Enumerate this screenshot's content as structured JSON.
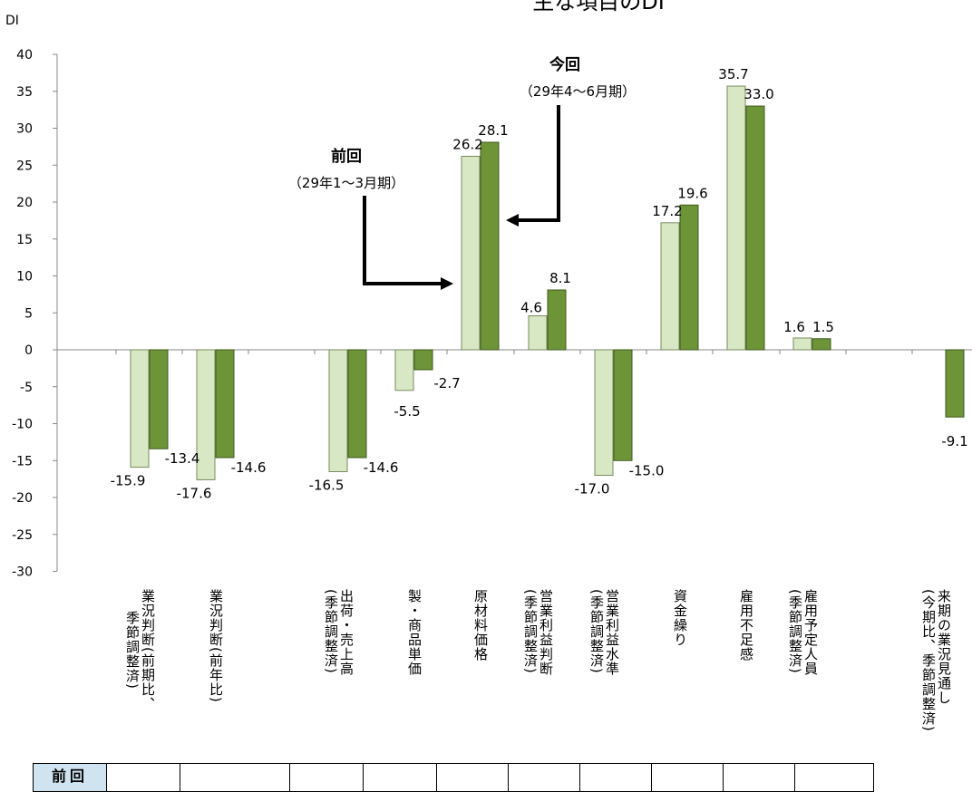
{
  "chart_data": {
    "type": "bar",
    "title": "主な項目のDI",
    "ylabel": "DI",
    "ylim": [
      -30,
      40
    ],
    "yticks": [
      40,
      35,
      30,
      25,
      20,
      15,
      10,
      5,
      0,
      -5,
      -10,
      -15,
      -20,
      -25,
      -30
    ],
    "categories": [
      "業況判断(前期比、季節調整済)",
      "業況判断(前年比)",
      "出荷・売上高(季節調整済)",
      "製・商品単価",
      "原材料価格",
      "営業利益判断(季節調整済)",
      "営業利益水準(季節調整済)",
      "資金繰り",
      "雇用不足感",
      "雇用予定人員(季節調整済)",
      "来期の業況見通し(今期比、季節調整済)"
    ],
    "series": [
      {
        "name": "前回",
        "color": "#d8e8c4",
        "values": [
          -15.9,
          -17.6,
          -16.5,
          -5.5,
          26.2,
          4.6,
          -17.0,
          17.2,
          35.7,
          1.6,
          null
        ]
      },
      {
        "name": "今回",
        "color": "#6e9438",
        "values": [
          -13.4,
          -14.6,
          -14.6,
          -2.7,
          28.1,
          8.1,
          -15.0,
          19.6,
          33.0,
          1.5,
          -9.1
        ]
      }
    ],
    "value_labels": [
      [
        "-15.9",
        "-13.4"
      ],
      [
        "-17.6",
        "-14.6"
      ],
      [
        "-16.5",
        "-14.6"
      ],
      [
        "-5.5",
        "-2.7"
      ],
      [
        "26.2",
        "28.1"
      ],
      [
        "4.6",
        "8.1"
      ],
      [
        "-17.0",
        "-15.0"
      ],
      [
        "17.2",
        "19.6"
      ],
      [
        "35.7",
        "33.0"
      ],
      [
        "1.6",
        "1.5"
      ],
      [
        "",
        "-9.1"
      ]
    ],
    "annotations": [
      {
        "series": "前回",
        "line1": "前回",
        "line2": "（29年1～3月期）"
      },
      {
        "series": "今回",
        "line1": "今回",
        "line2": "（29年4～6月期）"
      }
    ],
    "grid": false
  },
  "axis_labels": [
    {
      "line1": "業況判断(前期比、",
      "line2": "季節調整済)"
    },
    {
      "line1": "業況判断(前年比)",
      "line2": ""
    },
    {
      "line1": "出荷・売上高",
      "line2": "(季節調整済)"
    },
    {
      "line1": "製・商品単価",
      "line2": ""
    },
    {
      "line1": "原材料価格",
      "line2": ""
    },
    {
      "line1": "営業利益判断",
      "line2": "(季節調整済)"
    },
    {
      "line1": "営業利益水準",
      "line2": "(季節調整済)"
    },
    {
      "line1": "資金繰り",
      "line2": ""
    },
    {
      "line1": "雇用不足感",
      "line2": ""
    },
    {
      "line1": "雇用予定人員",
      "line2": "(季節調整済)"
    },
    {
      "line1": "来期の業況見通し",
      "line2": "(今期比、季節調整済)"
    }
  ],
  "table": {
    "header": "前回"
  }
}
